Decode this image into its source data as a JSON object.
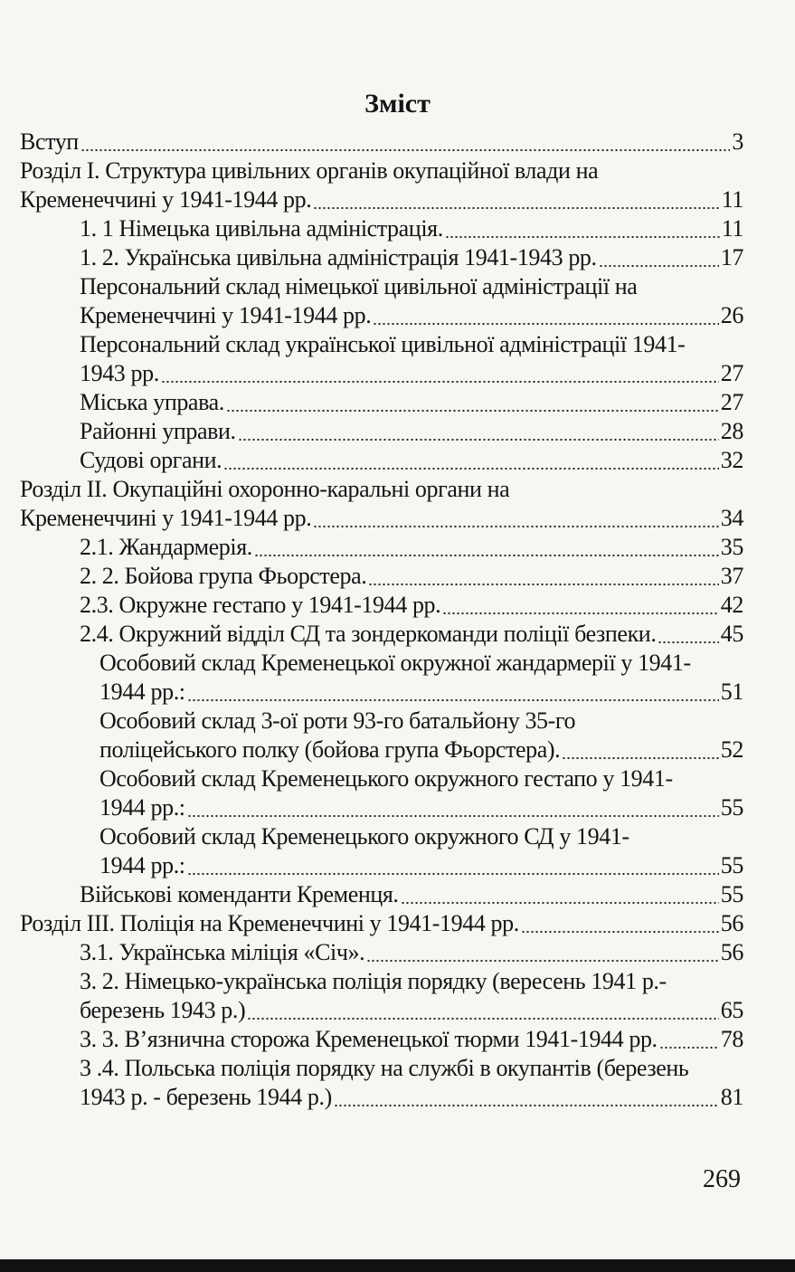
{
  "title": "Зміст",
  "entries": [
    {
      "text": "Вступ",
      "page": "3",
      "level": 0
    },
    {
      "text": "Розділ I.  Структура цивільних органів окупаційної влади  на",
      "level": 0
    },
    {
      "text": "Кременеччині у 1941-1944 рр.",
      "page": "11",
      "level": 0
    },
    {
      "text": "1. 1 Німецька цивільна адміністрація.",
      "page": "11",
      "level": 1
    },
    {
      "text": "1. 2. Українська цивільна адміністрація 1941-1943 рр.",
      "page": "17",
      "level": 1
    },
    {
      "text": "Персональний склад німецької цивільної адміністрації на",
      "level": 1
    },
    {
      "text": "Кременеччині у 1941-1944 рр.",
      "page": "26",
      "level": 1
    },
    {
      "text": "Персональний склад української цивільної адміністрації 1941-",
      "level": 1
    },
    {
      "text": "1943 рр.",
      "page": "27",
      "level": 1
    },
    {
      "text": "Міська управа.",
      "page": "27",
      "level": 1
    },
    {
      "text": "Районні управи.",
      "page": "28",
      "level": 1
    },
    {
      "text": "Судові органи.",
      "page": "32",
      "level": 1
    },
    {
      "text": "Розділ II.  Окупаційні охоронно-каральні органи  на",
      "level": 0
    },
    {
      "text": "Кременеччині у 1941-1944 рр.",
      "page": "34",
      "level": 0
    },
    {
      "text": "2.1. Жандармерія.",
      "page": "35",
      "level": 1
    },
    {
      "text": "2. 2. Бойова група Фьорстера.",
      "page": "37",
      "level": 1
    },
    {
      "text": "2.3. Окружне гестапо у 1941-1944 рр.",
      "page": "42",
      "level": 1
    },
    {
      "text": "2.4. Окружний відділ СД та зондеркоманди поліції безпеки.",
      "page": "45",
      "level": 1
    },
    {
      "text": "Особовий склад Кременецької окружної жандармерії у 1941-",
      "level": 2
    },
    {
      "text": "1944 рр.:",
      "page": "51",
      "level": 2
    },
    {
      "text": "Особовий склад 3-ої роти 93-го батальйону 35-го",
      "level": 2
    },
    {
      "text": "поліцейського полку (бойова група Фьорстера).",
      "page": "52",
      "level": 2
    },
    {
      "text": "Особовий склад Кременецького окружного гестапо у 1941-",
      "level": 2
    },
    {
      "text": "1944 рр.:",
      "page": "55",
      "level": 2
    },
    {
      "text": "Особовий склад Кременецького окружного СД у 1941-",
      "level": 2
    },
    {
      "text": "1944 рр.:",
      "page": "55",
      "level": 2
    },
    {
      "text": "Військові коменданти Кременця.",
      "page": "55",
      "level": 1
    },
    {
      "text": "Розділ III.  Поліція на Кременеччині у 1941-1944 рр.",
      "page": "56",
      "level": 0
    },
    {
      "text": "3.1. Українська міліція «Січ».",
      "page": "56",
      "level": 1
    },
    {
      "text": "3. 2. Німецько-українська поліція порядку (вересень 1941 р.-",
      "level": 1
    },
    {
      "text": "березень 1943 р.)",
      "page": "65",
      "level": 1
    },
    {
      "text": "3. 3. В’язнична сторожа Кременецької тюрми 1941-1944 рр.",
      "page": "78",
      "level": 1
    },
    {
      "text": "3 .4. Польська поліція порядку на службі в окупантів (березень",
      "level": 1
    },
    {
      "text": "1943 р. - березень 1944 р.)",
      "page": "81",
      "level": 1
    }
  ],
  "page_number": "269"
}
